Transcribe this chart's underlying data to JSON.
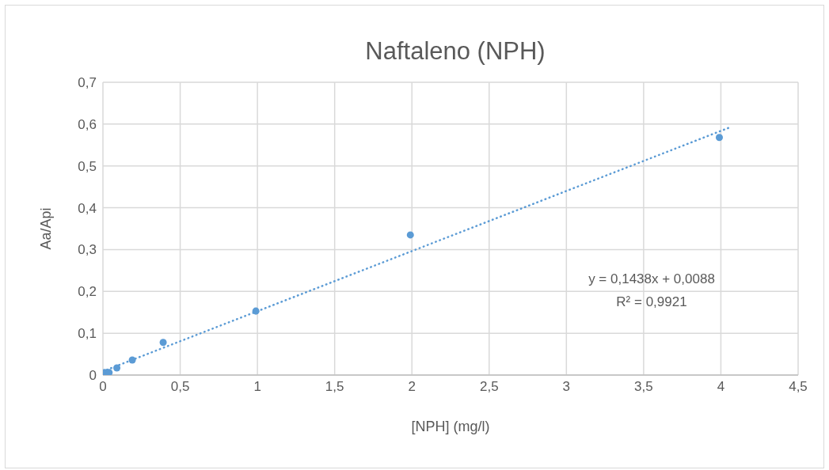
{
  "chart_data": {
    "type": "scatter",
    "title": "Naftaleno (NPH)",
    "xlabel": "[NPH] (mg/l)",
    "ylabel": "Aa/Api",
    "x": [
      0.01,
      0.04,
      0.09,
      0.19,
      0.39,
      0.99,
      1.99,
      3.99
    ],
    "series": [
      {
        "color": "#5b9bd5",
        "values": [
          0.006,
          0.006,
          0.017,
          0.036,
          0.078,
          0.153,
          0.335,
          0.568
        ],
        "marker": "circle"
      },
      {
        "type": "line",
        "color": "#5b9bd5",
        "x": [
          0,
          4.05
        ],
        "values": [
          0.009,
          0.591
        ],
        "line_style": "dotted",
        "marker": "none"
      }
    ],
    "annotations": [
      "y = 0,1438x + 0,0088",
      "R² = 0,9921"
    ],
    "xlim": [
      0,
      4.5
    ],
    "ylim": [
      0,
      0.7
    ],
    "xticks": [
      0,
      {
        "value": 0.5,
        "label": "0,5"
      },
      1,
      {
        "value": 1.5,
        "label": "1,5"
      },
      2,
      {
        "value": 2.5,
        "label": "2,5"
      },
      3,
      {
        "value": 3.5,
        "label": "3,5"
      },
      4,
      {
        "value": 4.5,
        "label": "4,5"
      }
    ],
    "yticks": [
      0,
      {
        "value": 0.1,
        "label": "0,1"
      },
      {
        "value": 0.2,
        "label": "0,2"
      },
      {
        "value": 0.3,
        "label": "0,3"
      },
      {
        "value": 0.4,
        "label": "0,4"
      },
      {
        "value": 0.5,
        "label": "0,5"
      },
      {
        "value": 0.6,
        "label": "0,6"
      },
      {
        "value": 0.7,
        "label": "0,7"
      }
    ],
    "grid": true,
    "legend": false
  }
}
